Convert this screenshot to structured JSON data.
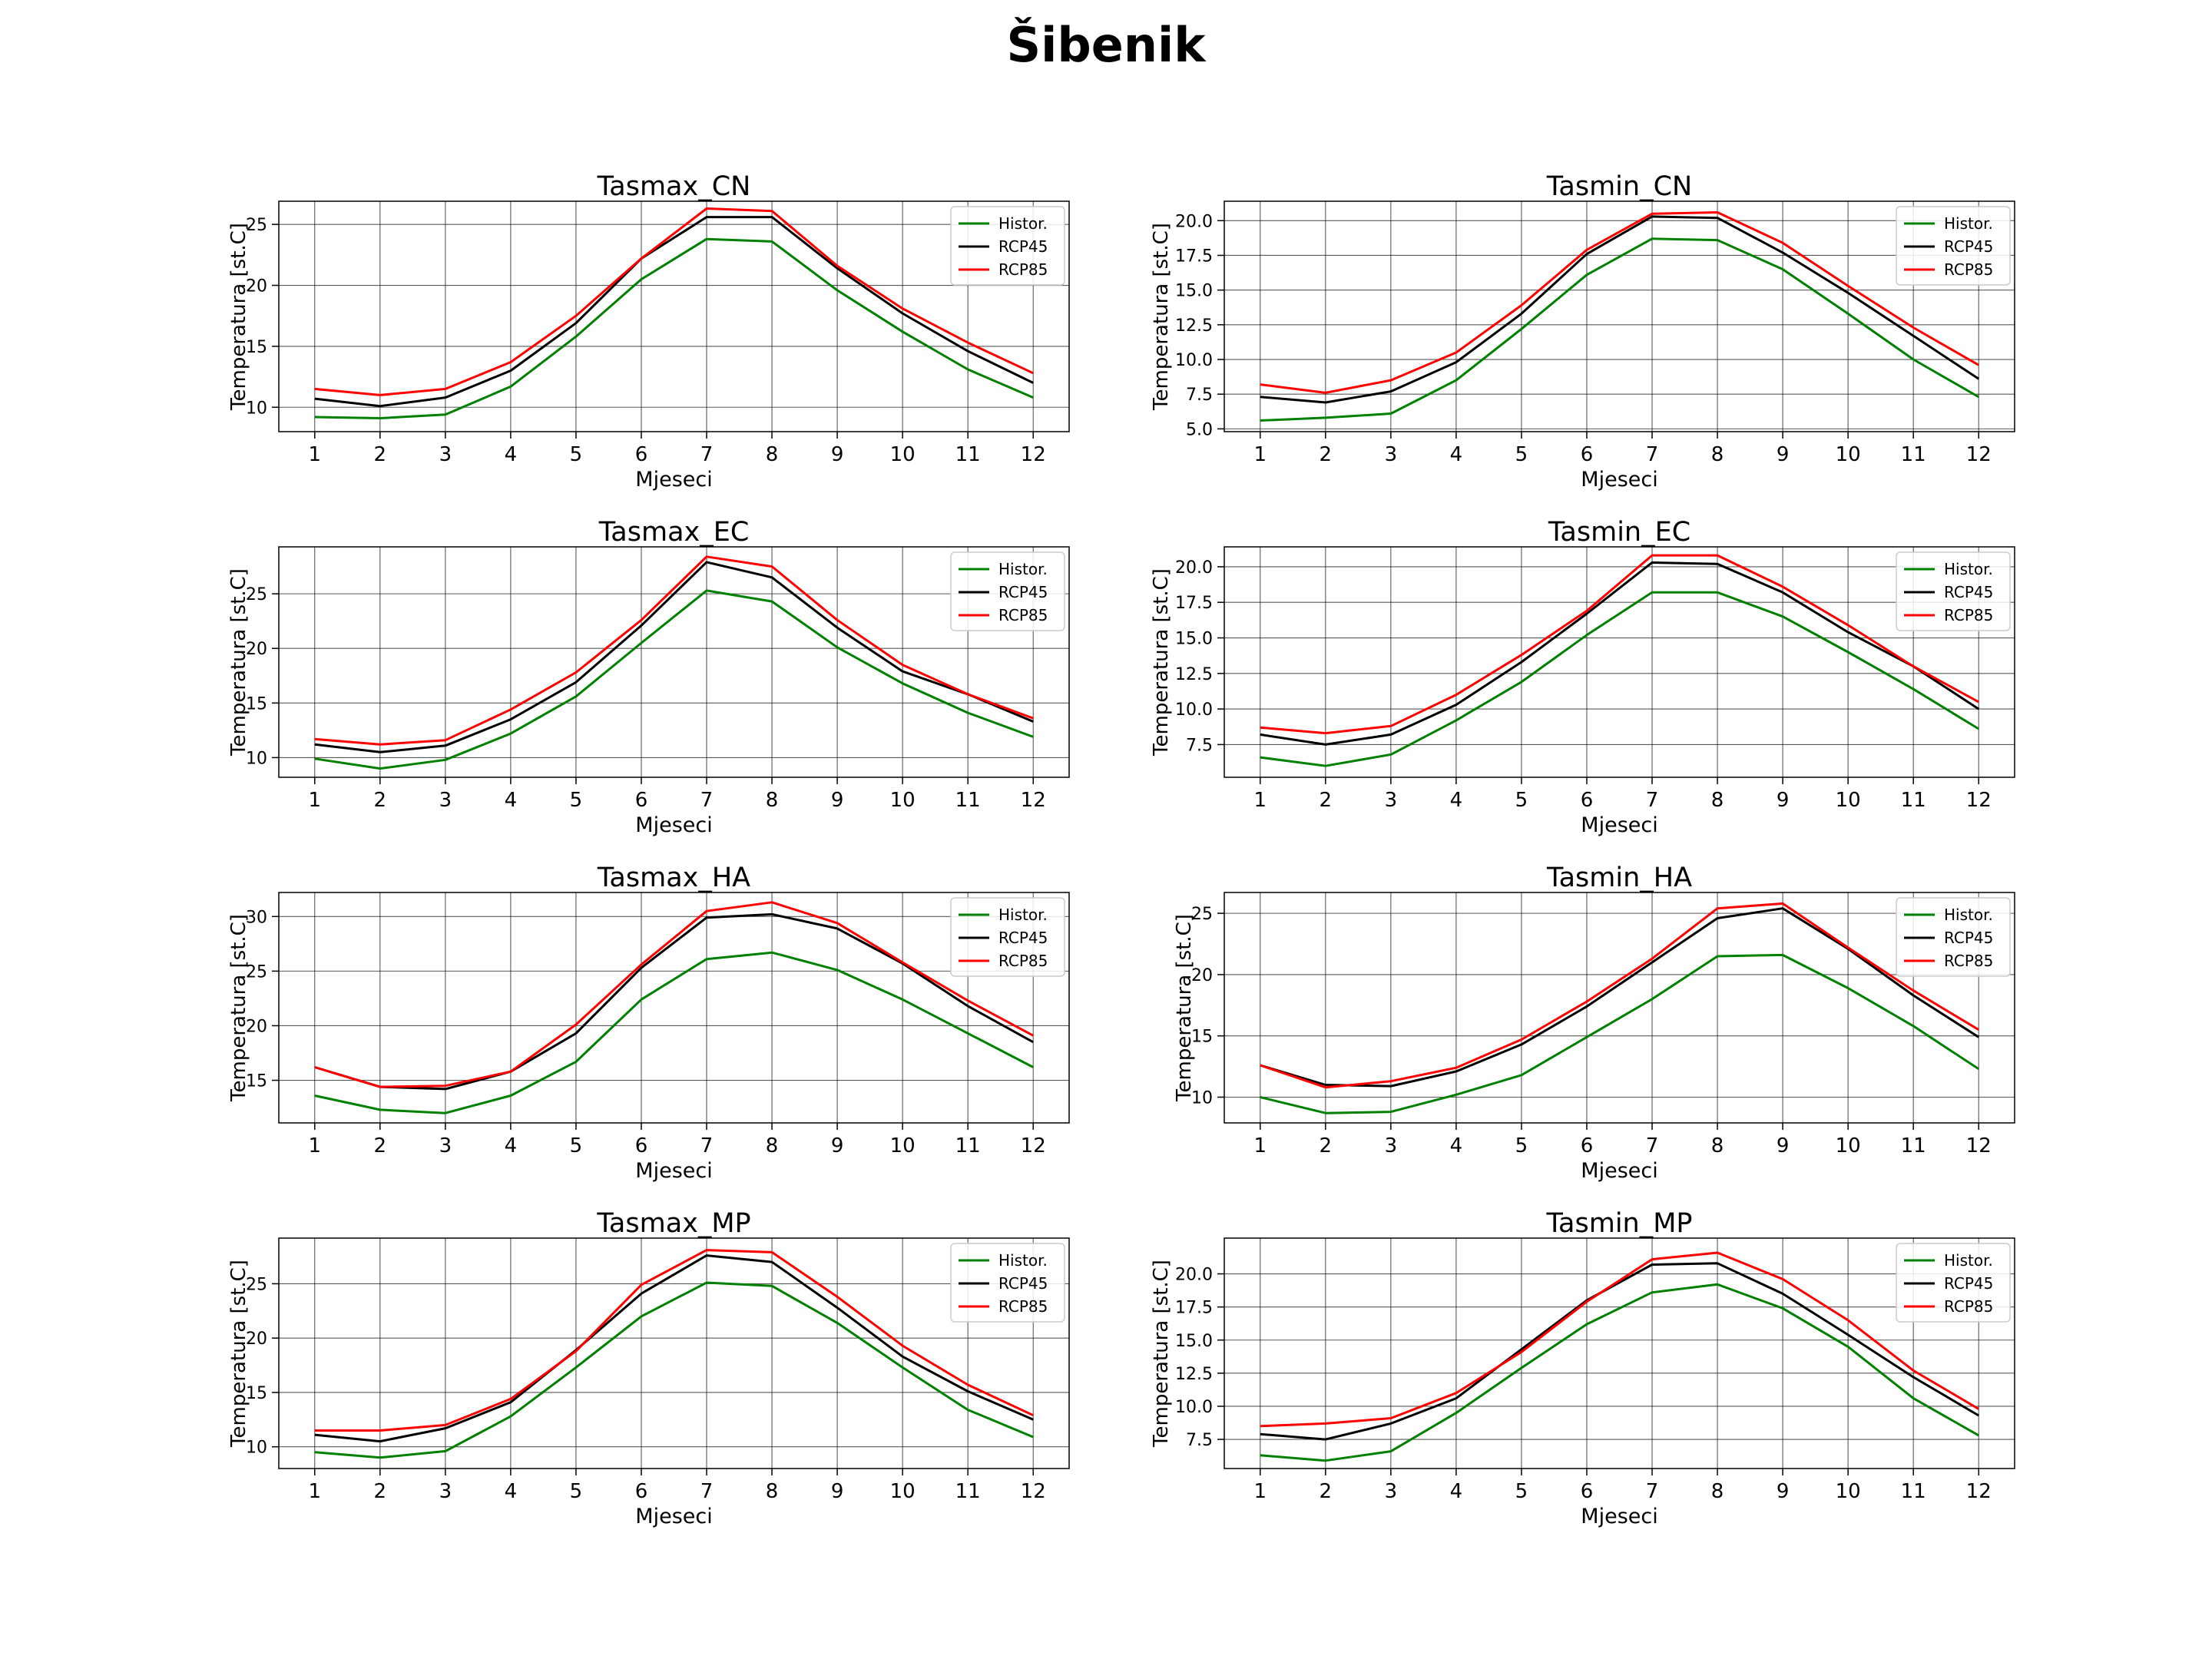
{
  "suptitle": "Šibenik",
  "legend_labels": [
    "Histor.",
    "RCP45",
    "RCP85"
  ],
  "series_colors": {
    "Histor.": "#008000",
    "RCP45": "#000000",
    "RCP85": "#ff0000"
  },
  "chart_data": [
    {
      "type": "line",
      "title": "Tasmax_CN",
      "xlabel": "Mjeseci",
      "ylabel": "Temperatura [st.C]",
      "x": [
        1,
        2,
        3,
        4,
        5,
        6,
        7,
        8,
        9,
        10,
        11,
        12
      ],
      "xlim": [
        0.45,
        12.55
      ],
      "ylim": [
        8,
        26.9
      ],
      "yticks": [
        10,
        15,
        20,
        25
      ],
      "ytick_labels": [
        "10",
        "15",
        "20",
        "25"
      ],
      "grid": true,
      "legend": "upper right",
      "series": [
        {
          "name": "Histor.",
          "color": "#008000",
          "values": [
            9.2,
            9.1,
            9.4,
            11.7,
            15.8,
            20.5,
            23.8,
            23.6,
            19.6,
            16.2,
            13.1,
            10.8
          ]
        },
        {
          "name": "RCP45",
          "color": "#000000",
          "values": [
            10.7,
            10.1,
            10.8,
            13.0,
            16.9,
            22.2,
            25.6,
            25.6,
            21.4,
            17.7,
            14.6,
            12.0
          ]
        },
        {
          "name": "RCP85",
          "color": "#ff0000",
          "values": [
            11.5,
            11.0,
            11.5,
            13.7,
            17.5,
            22.2,
            26.3,
            26.1,
            21.6,
            18.1,
            15.3,
            12.8
          ]
        }
      ]
    },
    {
      "type": "line",
      "title": "Tasmin_CN",
      "xlabel": "Mjeseci",
      "ylabel": "Temperatura [st.C]",
      "x": [
        1,
        2,
        3,
        4,
        5,
        6,
        7,
        8,
        9,
        10,
        11,
        12
      ],
      "xlim": [
        0.45,
        12.55
      ],
      "ylim": [
        4.8,
        21.4
      ],
      "yticks": [
        5,
        7.5,
        10,
        12.5,
        15,
        17.5,
        20
      ],
      "ytick_labels": [
        "5.0",
        "7.5",
        "10.0",
        "12.5",
        "15.0",
        "17.5",
        "20.0"
      ],
      "grid": true,
      "legend": "upper right",
      "series": [
        {
          "name": "Histor.",
          "color": "#008000",
          "values": [
            5.6,
            5.8,
            6.1,
            8.5,
            12.2,
            16.1,
            18.7,
            18.6,
            16.5,
            13.3,
            10.0,
            7.3
          ]
        },
        {
          "name": "RCP45",
          "color": "#000000",
          "values": [
            7.3,
            6.9,
            7.7,
            9.8,
            13.3,
            17.6,
            20.3,
            20.2,
            17.7,
            14.8,
            11.7,
            8.6
          ]
        },
        {
          "name": "RCP85",
          "color": "#ff0000",
          "values": [
            8.2,
            7.6,
            8.5,
            10.5,
            13.9,
            17.9,
            20.5,
            20.6,
            18.4,
            15.3,
            12.3,
            9.6
          ]
        }
      ]
    },
    {
      "type": "line",
      "title": "Tasmax_EC",
      "xlabel": "Mjeseci",
      "ylabel": "Temperatura [st.C]",
      "x": [
        1,
        2,
        3,
        4,
        5,
        6,
        7,
        8,
        9,
        10,
        11,
        12
      ],
      "xlim": [
        0.45,
        12.55
      ],
      "ylim": [
        8.2,
        29.3
      ],
      "yticks": [
        10,
        15,
        20,
        25
      ],
      "ytick_labels": [
        "10",
        "15",
        "20",
        "25"
      ],
      "grid": true,
      "legend": "upper right",
      "series": [
        {
          "name": "Histor.",
          "color": "#008000",
          "values": [
            9.9,
            9.0,
            9.8,
            12.2,
            15.6,
            20.5,
            25.3,
            24.3,
            20.1,
            16.8,
            14.1,
            11.9
          ]
        },
        {
          "name": "RCP45",
          "color": "#000000",
          "values": [
            11.2,
            10.5,
            11.1,
            13.5,
            16.9,
            22.1,
            27.9,
            26.5,
            21.9,
            17.9,
            15.8,
            13.3
          ]
        },
        {
          "name": "RCP85",
          "color": "#ff0000",
          "values": [
            11.7,
            11.2,
            11.6,
            14.4,
            17.8,
            22.6,
            28.4,
            27.5,
            22.6,
            18.5,
            15.8,
            13.6
          ]
        }
      ]
    },
    {
      "type": "line",
      "title": "Tasmin_EC",
      "xlabel": "Mjeseci",
      "ylabel": "Temperatura [st.C]",
      "x": [
        1,
        2,
        3,
        4,
        5,
        6,
        7,
        8,
        9,
        10,
        11,
        12
      ],
      "xlim": [
        0.45,
        12.55
      ],
      "ylim": [
        5.2,
        21.4
      ],
      "yticks": [
        7.5,
        10,
        12.5,
        15,
        17.5,
        20
      ],
      "ytick_labels": [
        "7.5",
        "10.0",
        "12.5",
        "15.0",
        "17.5",
        "20.0"
      ],
      "grid": true,
      "legend": "upper right",
      "series": [
        {
          "name": "Histor.",
          "color": "#008000",
          "values": [
            6.6,
            6.0,
            6.8,
            9.2,
            11.9,
            15.2,
            18.2,
            18.2,
            16.5,
            14.0,
            11.4,
            8.6
          ]
        },
        {
          "name": "RCP45",
          "color": "#000000",
          "values": [
            8.2,
            7.5,
            8.2,
            10.3,
            13.3,
            16.7,
            20.3,
            20.2,
            18.2,
            15.4,
            13.0,
            10.0
          ]
        },
        {
          "name": "RCP85",
          "color": "#ff0000",
          "values": [
            8.7,
            8.3,
            8.8,
            11.0,
            13.8,
            16.9,
            20.8,
            20.8,
            18.6,
            15.9,
            13.0,
            10.5
          ]
        }
      ]
    },
    {
      "type": "line",
      "title": "Tasmax_HA",
      "xlabel": "Mjeseci",
      "ylabel": "Temperatura [st.C]",
      "x": [
        1,
        2,
        3,
        4,
        5,
        6,
        7,
        8,
        9,
        10,
        11,
        12
      ],
      "xlim": [
        0.45,
        12.55
      ],
      "ylim": [
        11.1,
        32.2
      ],
      "yticks": [
        15,
        20,
        25,
        30
      ],
      "ytick_labels": [
        "15",
        "20",
        "25",
        "30"
      ],
      "grid": true,
      "legend": "upper right",
      "series": [
        {
          "name": "Histor.",
          "color": "#008000",
          "values": [
            13.6,
            12.3,
            12.0,
            13.6,
            16.7,
            22.4,
            26.1,
            26.7,
            25.1,
            22.4,
            19.3,
            16.2
          ]
        },
        {
          "name": "RCP45",
          "color": "#000000",
          "values": [
            16.2,
            14.4,
            14.2,
            15.8,
            19.3,
            25.3,
            29.9,
            30.2,
            28.9,
            25.7,
            21.8,
            18.5
          ]
        },
        {
          "name": "RCP85",
          "color": "#ff0000",
          "values": [
            16.2,
            14.4,
            14.5,
            15.8,
            20.1,
            25.6,
            30.5,
            31.3,
            29.4,
            25.8,
            22.3,
            19.1
          ]
        }
      ]
    },
    {
      "type": "line",
      "title": "Tasmin_HA",
      "xlabel": "Mjeseci",
      "ylabel": "Temperatura [st.C]",
      "x": [
        1,
        2,
        3,
        4,
        5,
        6,
        7,
        8,
        9,
        10,
        11,
        12
      ],
      "xlim": [
        0.45,
        12.55
      ],
      "ylim": [
        7.9,
        26.7
      ],
      "yticks": [
        10,
        15,
        20,
        25
      ],
      "ytick_labels": [
        "10",
        "15",
        "20",
        "25"
      ],
      "grid": true,
      "legend": "upper right",
      "series": [
        {
          "name": "Histor.",
          "color": "#008000",
          "values": [
            10.0,
            8.7,
            8.8,
            10.2,
            11.8,
            14.9,
            18.0,
            21.5,
            21.6,
            18.9,
            15.8,
            12.3
          ]
        },
        {
          "name": "RCP45",
          "color": "#000000",
          "values": [
            12.6,
            11.0,
            10.9,
            12.1,
            14.3,
            17.4,
            21.0,
            24.6,
            25.4,
            22.1,
            18.3,
            14.9
          ]
        },
        {
          "name": "RCP85",
          "color": "#ff0000",
          "values": [
            12.6,
            10.8,
            11.3,
            12.4,
            14.7,
            17.8,
            21.3,
            25.4,
            25.8,
            22.2,
            18.7,
            15.5
          ]
        }
      ]
    },
    {
      "type": "line",
      "title": "Tasmax_MP",
      "xlabel": "Mjeseci",
      "ylabel": "Temperatura [st.C]",
      "x": [
        1,
        2,
        3,
        4,
        5,
        6,
        7,
        8,
        9,
        10,
        11,
        12
      ],
      "xlim": [
        0.45,
        12.55
      ],
      "ylim": [
        8.0,
        29.2
      ],
      "yticks": [
        10,
        15,
        20,
        25
      ],
      "ytick_labels": [
        "10",
        "15",
        "20",
        "25"
      ],
      "grid": true,
      "legend": "upper right",
      "series": [
        {
          "name": "Histor.",
          "color": "#008000",
          "values": [
            9.5,
            9.0,
            9.6,
            12.8,
            17.3,
            22.0,
            25.1,
            24.8,
            21.4,
            17.3,
            13.4,
            10.9
          ]
        },
        {
          "name": "RCP45",
          "color": "#000000",
          "values": [
            11.1,
            10.5,
            11.7,
            14.1,
            18.9,
            24.1,
            27.6,
            27.0,
            22.8,
            18.3,
            15.1,
            12.5
          ]
        },
        {
          "name": "RCP85",
          "color": "#ff0000",
          "values": [
            11.5,
            11.5,
            12.0,
            14.4,
            18.8,
            24.9,
            28.1,
            27.9,
            23.8,
            19.3,
            15.7,
            12.9
          ]
        }
      ]
    },
    {
      "type": "line",
      "title": "Tasmin_MP",
      "xlabel": "Mjeseci",
      "ylabel": "Temperatura [st.C]",
      "x": [
        1,
        2,
        3,
        4,
        5,
        6,
        7,
        8,
        9,
        10,
        11,
        12
      ],
      "xlim": [
        0.45,
        12.55
      ],
      "ylim": [
        5.3,
        22.7
      ],
      "yticks": [
        7.5,
        10,
        12.5,
        15,
        17.5,
        20
      ],
      "ytick_labels": [
        "7.5",
        "10.0",
        "12.5",
        "15.0",
        "17.5",
        "20.0"
      ],
      "grid": true,
      "legend": "upper right",
      "series": [
        {
          "name": "Histor.",
          "color": "#008000",
          "values": [
            6.3,
            5.9,
            6.6,
            9.5,
            12.9,
            16.2,
            18.6,
            19.2,
            17.4,
            14.5,
            10.6,
            7.8
          ]
        },
        {
          "name": "RCP45",
          "color": "#000000",
          "values": [
            7.9,
            7.5,
            8.7,
            10.6,
            14.3,
            18.0,
            20.7,
            20.8,
            18.5,
            15.4,
            12.2,
            9.3
          ]
        },
        {
          "name": "RCP85",
          "color": "#ff0000",
          "values": [
            8.5,
            8.7,
            9.1,
            11.0,
            14.1,
            17.9,
            21.1,
            21.6,
            19.6,
            16.5,
            12.7,
            9.8
          ]
        }
      ]
    }
  ]
}
